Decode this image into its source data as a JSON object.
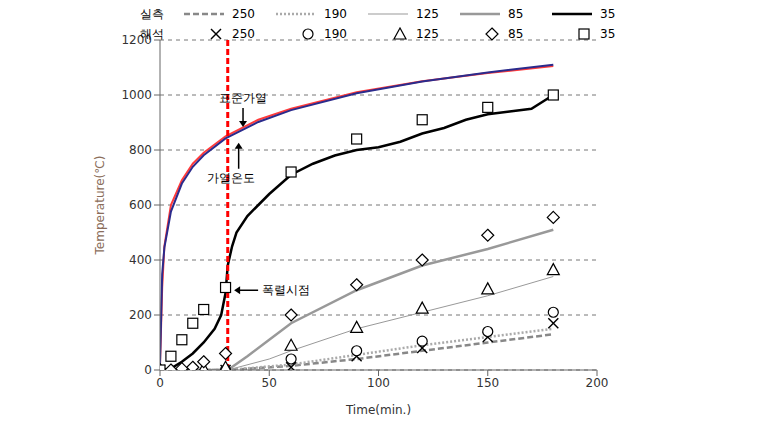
{
  "chart_data": {
    "type": "line",
    "xlabel": "Time(min.)",
    "ylabel": "Temperature(℃)",
    "xlim": [
      0,
      200
    ],
    "xticks": [
      0,
      50,
      100,
      150,
      200
    ],
    "ylim": [
      0,
      1200
    ],
    "yticks": [
      0,
      200,
      400,
      600,
      800,
      1000,
      1200
    ],
    "grid": true,
    "series": [
      {
        "name": "가열온도",
        "color": "#ff3b3b",
        "line_style": "solid",
        "x": [
          0,
          1,
          2,
          5,
          10,
          15,
          20,
          30,
          45,
          60,
          90,
          120,
          150,
          180
        ],
        "values": [
          20,
          300,
          450,
          600,
          690,
          750,
          790,
          850,
          910,
          950,
          1010,
          1050,
          1080,
          1105
        ]
      },
      {
        "name": "표준가열",
        "color": "#2b2b8c",
        "line_style": "solid",
        "x": [
          0,
          1,
          2,
          5,
          10,
          15,
          20,
          30,
          45,
          60,
          90,
          120,
          150,
          180
        ],
        "values": [
          20,
          349,
          445,
          576,
          678,
          739,
          781,
          842,
          902,
          945,
          1006,
          1049,
          1082,
          1110
        ]
      },
      {
        "name": "250",
        "group": "실측",
        "color": "#888888",
        "line_style": "dashed",
        "x": [
          0,
          31,
          60,
          90,
          120,
          150,
          180
        ],
        "values": [
          0,
          0,
          15,
          40,
          70,
          100,
          130
        ]
      },
      {
        "name": "190",
        "group": "실측",
        "color": "#aaaaaa",
        "line_style": "dotted",
        "x": [
          0,
          31,
          60,
          90,
          120,
          150,
          180
        ],
        "values": [
          0,
          0,
          20,
          55,
          90,
          120,
          150
        ]
      },
      {
        "name": "125",
        "group": "실측",
        "color": "#999999",
        "line_style": "thin",
        "x": [
          0,
          31,
          50,
          60,
          90,
          120,
          150,
          180
        ],
        "values": [
          0,
          0,
          40,
          70,
          150,
          210,
          270,
          340
        ]
      },
      {
        "name": "85",
        "group": "실측",
        "color": "#999999",
        "line_style": "solid",
        "x": [
          0,
          31,
          40,
          50,
          60,
          90,
          120,
          150,
          180
        ],
        "values": [
          0,
          0,
          50,
          110,
          170,
          290,
          380,
          440,
          510
        ]
      },
      {
        "name": "35",
        "group": "실측",
        "color": "#000000",
        "line_style": "solid",
        "x": [
          0,
          5,
          10,
          15,
          20,
          25,
          28,
          30,
          31,
          33,
          35,
          40,
          45,
          50,
          60,
          70,
          80,
          90,
          100,
          110,
          120,
          130,
          140,
          150,
          160,
          170,
          180
        ],
        "values": [
          0,
          5,
          30,
          60,
          100,
          150,
          200,
          280,
          380,
          450,
          500,
          560,
          600,
          640,
          710,
          750,
          780,
          800,
          810,
          830,
          860,
          880,
          910,
          930,
          940,
          950,
          1000
        ]
      },
      {
        "name": "250",
        "group": "해석",
        "type": "scatter",
        "marker": "x",
        "color": "#000000",
        "x": [
          0,
          30,
          60,
          90,
          120,
          150,
          180
        ],
        "values": [
          0,
          0,
          10,
          50,
          80,
          120,
          170
        ]
      },
      {
        "name": "190",
        "group": "해석",
        "type": "scatter",
        "marker": "circle",
        "color": "#000000",
        "x": [
          0,
          30,
          60,
          90,
          120,
          150,
          180
        ],
        "values": [
          0,
          0,
          40,
          70,
          105,
          140,
          210
        ]
      },
      {
        "name": "125",
        "group": "해석",
        "type": "scatter",
        "marker": "triangle",
        "color": "#000000",
        "x": [
          0,
          10,
          20,
          30,
          60,
          90,
          120,
          150,
          180
        ],
        "values": [
          0,
          2,
          5,
          10,
          90,
          155,
          225,
          295,
          365
        ]
      },
      {
        "name": "85",
        "group": "해석",
        "type": "scatter",
        "marker": "diamond",
        "color": "#000000",
        "x": [
          0,
          5,
          10,
          15,
          20,
          30,
          60,
          90,
          120,
          150,
          180
        ],
        "values": [
          0,
          0,
          5,
          10,
          30,
          60,
          200,
          310,
          400,
          490,
          555
        ]
      },
      {
        "name": "35",
        "group": "해석",
        "type": "scatter",
        "marker": "square",
        "color": "#000000",
        "x": [
          0,
          5,
          10,
          15,
          20,
          30,
          60,
          90,
          120,
          150,
          180
        ],
        "values": [
          0,
          50,
          110,
          170,
          220,
          300,
          720,
          840,
          910,
          955,
          1000
        ]
      }
    ],
    "reference_line": {
      "x": 31,
      "color": "#ff0000",
      "line_style": "dashed"
    },
    "annotations": [
      {
        "text": "표준가열",
        "x": 38,
        "y": 880,
        "arrow": "down"
      },
      {
        "text": "가열온도",
        "x": 36,
        "y": 830,
        "arrow": "up"
      },
      {
        "text": "폭렬시점",
        "x": 33,
        "y": 290,
        "arrow": "left"
      }
    ]
  }
}
